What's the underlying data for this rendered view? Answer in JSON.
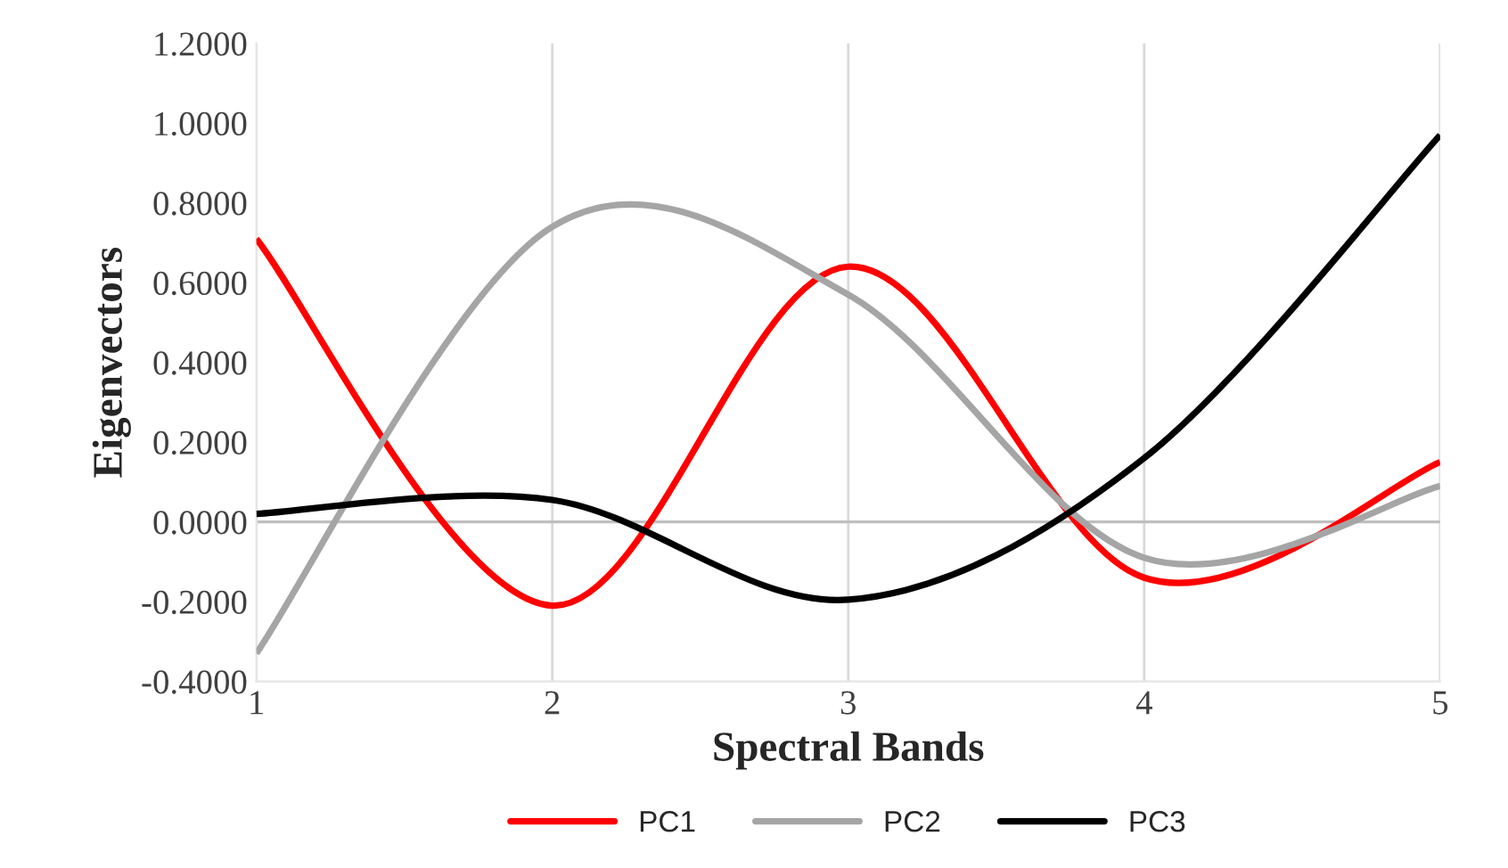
{
  "chart_data": {
    "type": "line",
    "xlabel": "Spectral Bands",
    "ylabel": "Eigenvectors",
    "x": [
      1,
      2,
      3,
      4,
      5
    ],
    "series": [
      {
        "name": "PC1",
        "color": "#ff0000",
        "values": [
          0.71,
          -0.21,
          0.64,
          -0.14,
          0.15
        ]
      },
      {
        "name": "PC2",
        "color": "#a5a5a5",
        "values": [
          -0.33,
          0.74,
          0.57,
          -0.09,
          0.09
        ]
      },
      {
        "name": "PC3",
        "color": "#000000",
        "values": [
          0.02,
          0.055,
          -0.195,
          0.16,
          0.97
        ]
      }
    ],
    "xlim": [
      1,
      5
    ],
    "xticks": [
      1,
      2,
      3,
      4,
      5
    ],
    "ylim": [
      -0.4,
      1.2
    ],
    "yticks": [
      {
        "value": -0.4,
        "label": "-0.4000"
      },
      {
        "value": -0.2,
        "label": "-0.2000"
      },
      {
        "value": 0,
        "label": "0.0000"
      },
      {
        "value": 0.2,
        "label": "0.2000"
      },
      {
        "value": 0.4,
        "label": "0.4000"
      },
      {
        "value": 0.6,
        "label": "0.6000"
      },
      {
        "value": 0.8,
        "label": "0.8000"
      },
      {
        "value": 1.0,
        "label": "1.0000"
      },
      {
        "value": 1.2,
        "label": "1.2000"
      }
    ],
    "ref_lines": [
      {
        "axis": "y",
        "value": 0,
        "color": "#bfbfbf"
      }
    ],
    "grid": "x",
    "legend": "bottom",
    "marker": "none",
    "line_style": "solid"
  }
}
